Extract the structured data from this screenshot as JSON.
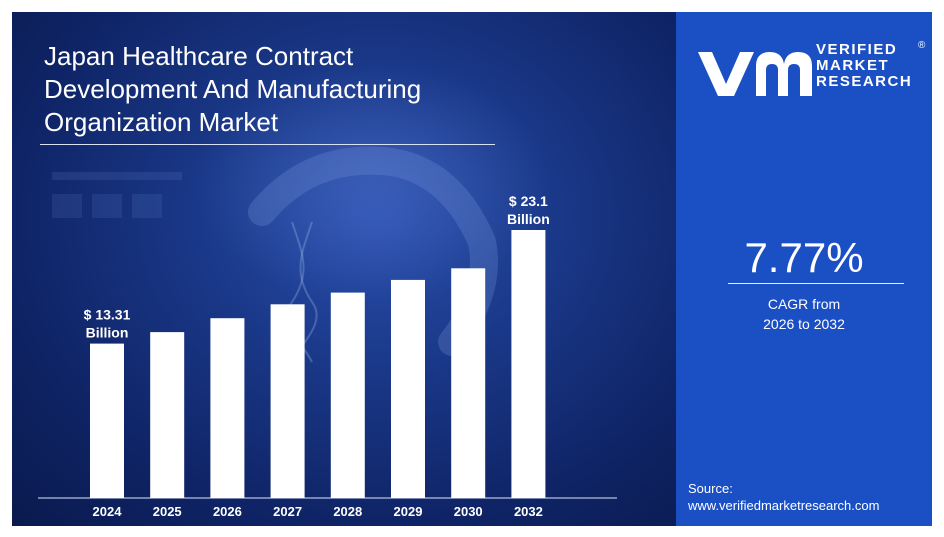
{
  "title_lines": [
    "Japan Healthcare Contract",
    "Development And Manufacturing",
    "Organization Market"
  ],
  "brand": {
    "line1": "VERIFIED",
    "line2": "MARKET",
    "line3": "RESEARCH",
    "registered": "®"
  },
  "cagr": {
    "value": "7.77%",
    "label_line1": "CAGR from",
    "label_line2": "2026 to 2032"
  },
  "source": {
    "label": "Source:",
    "url": "www.verifiedmarketresearch.com"
  },
  "colors": {
    "bar": "#ffffff",
    "right_panel": "#1b4fc4",
    "background": "#112a70"
  },
  "chart_data": {
    "type": "bar",
    "categories": [
      "2024",
      "2025",
      "2026",
      "2027",
      "2028",
      "2029",
      "2030",
      "2032"
    ],
    "values": [
      13.31,
      14.3,
      15.5,
      16.7,
      17.7,
      18.8,
      19.8,
      23.1
    ],
    "annotations": [
      {
        "category": "2024",
        "line1": "$ 13.31",
        "line2": "Billion"
      },
      {
        "category": "2032",
        "line1": "$ 23.1",
        "line2": "Billion"
      }
    ],
    "grid": false
  }
}
